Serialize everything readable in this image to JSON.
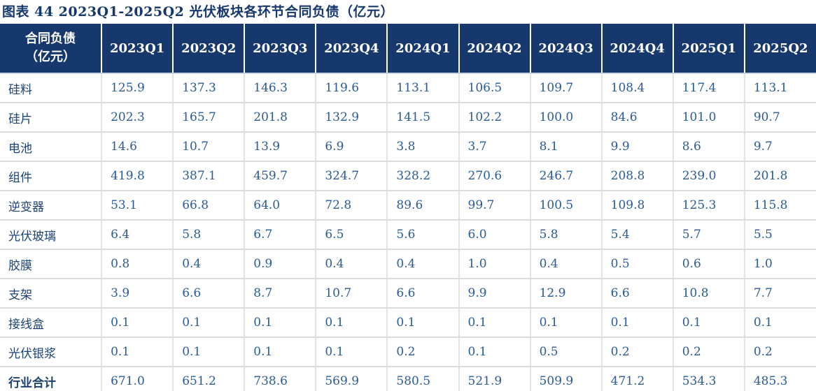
{
  "title": "图表 44  2023Q1-2025Q2 光伏板块各环节合同负债（亿元）",
  "table": {
    "header": {
      "label_line1": "合同负债",
      "label_line2": "（亿元）",
      "quarters": [
        "2023Q1",
        "2023Q2",
        "2023Q3",
        "2023Q4",
        "2024Q1",
        "2024Q2",
        "2024Q3",
        "2024Q4",
        "2025Q1",
        "2025Q2"
      ]
    },
    "rows": [
      {
        "label": "硅料",
        "total": false,
        "values": [
          "125.9",
          "137.3",
          "146.3",
          "119.6",
          "113.1",
          "106.5",
          "109.7",
          "108.4",
          "117.4",
          "113.1"
        ]
      },
      {
        "label": "硅片",
        "total": false,
        "values": [
          "202.3",
          "165.7",
          "201.8",
          "132.9",
          "141.5",
          "102.2",
          "100.0",
          "84.6",
          "101.0",
          "90.7"
        ]
      },
      {
        "label": "电池",
        "total": false,
        "values": [
          "14.6",
          "10.7",
          "13.9",
          "6.9",
          "3.8",
          "3.7",
          "8.1",
          "9.9",
          "8.6",
          "9.7"
        ]
      },
      {
        "label": "组件",
        "total": false,
        "values": [
          "419.8",
          "387.1",
          "459.7",
          "324.7",
          "328.2",
          "270.6",
          "246.7",
          "208.8",
          "239.0",
          "201.8"
        ]
      },
      {
        "label": "逆变器",
        "total": false,
        "values": [
          "53.1",
          "66.8",
          "64.0",
          "72.8",
          "89.6",
          "99.7",
          "100.5",
          "109.8",
          "125.3",
          "115.8"
        ]
      },
      {
        "label": "光伏玻璃",
        "total": false,
        "values": [
          "6.4",
          "5.8",
          "6.7",
          "6.5",
          "5.6",
          "6.0",
          "5.8",
          "5.4",
          "5.7",
          "5.5"
        ]
      },
      {
        "label": "胶膜",
        "total": false,
        "values": [
          "0.8",
          "0.4",
          "0.9",
          "0.4",
          "0.4",
          "1.0",
          "0.4",
          "0.5",
          "0.6",
          "1.0"
        ]
      },
      {
        "label": "支架",
        "total": false,
        "values": [
          "3.9",
          "6.6",
          "8.7",
          "10.7",
          "6.6",
          "9.9",
          "12.9",
          "6.6",
          "10.8",
          "7.7"
        ]
      },
      {
        "label": "接线盒",
        "total": false,
        "values": [
          "0.1",
          "0.1",
          "0.1",
          "0.1",
          "0.1",
          "0.1",
          "0.1",
          "0.1",
          "0.1",
          "0.1"
        ]
      },
      {
        "label": "光伏银浆",
        "total": false,
        "values": [
          "0.1",
          "0.1",
          "0.1",
          "0.1",
          "0.2",
          "0.1",
          "0.5",
          "0.2",
          "0.2",
          "0.2"
        ]
      },
      {
        "label": "行业合计",
        "total": true,
        "values": [
          "671.0",
          "651.2",
          "738.6",
          "569.9",
          "580.5",
          "521.9",
          "509.9",
          "471.2",
          "534.3",
          "485.3"
        ]
      }
    ]
  },
  "colors": {
    "navy": "#17386d",
    "number_text": "#2a5b94",
    "label_text": "#1c4273",
    "grid_line": "#dcdcdc"
  },
  "chart_data": {
    "type": "table",
    "title": "图表 44 2023Q1-2025Q2 光伏板块各环节合同负债（亿元）",
    "columns": [
      "合同负债（亿元）",
      "2023Q1",
      "2023Q2",
      "2023Q3",
      "2023Q4",
      "2024Q1",
      "2024Q2",
      "2024Q3",
      "2024Q4",
      "2025Q1",
      "2025Q2"
    ],
    "rows": [
      [
        "硅料",
        125.9,
        137.3,
        146.3,
        119.6,
        113.1,
        106.5,
        109.7,
        108.4,
        117.4,
        113.1
      ],
      [
        "硅片",
        202.3,
        165.7,
        201.8,
        132.9,
        141.5,
        102.2,
        100.0,
        84.6,
        101.0,
        90.7
      ],
      [
        "电池",
        14.6,
        10.7,
        13.9,
        6.9,
        3.8,
        3.7,
        8.1,
        9.9,
        8.6,
        9.7
      ],
      [
        "组件",
        419.8,
        387.1,
        459.7,
        324.7,
        328.2,
        270.6,
        246.7,
        208.8,
        239.0,
        201.8
      ],
      [
        "逆变器",
        53.1,
        66.8,
        64.0,
        72.8,
        89.6,
        99.7,
        100.5,
        109.8,
        125.3,
        115.8
      ],
      [
        "光伏玻璃",
        6.4,
        5.8,
        6.7,
        6.5,
        5.6,
        6.0,
        5.8,
        5.4,
        5.7,
        5.5
      ],
      [
        "胶膜",
        0.8,
        0.4,
        0.9,
        0.4,
        0.4,
        1.0,
        0.4,
        0.5,
        0.6,
        1.0
      ],
      [
        "支架",
        3.9,
        6.6,
        8.7,
        10.7,
        6.6,
        9.9,
        12.9,
        6.6,
        10.8,
        7.7
      ],
      [
        "接线盒",
        0.1,
        0.1,
        0.1,
        0.1,
        0.1,
        0.1,
        0.1,
        0.1,
        0.1,
        0.1
      ],
      [
        "光伏银浆",
        0.1,
        0.1,
        0.1,
        0.1,
        0.2,
        0.1,
        0.5,
        0.2,
        0.2,
        0.2
      ],
      [
        "行业合计",
        671.0,
        651.2,
        738.6,
        569.9,
        580.5,
        521.9,
        509.9,
        471.2,
        534.3,
        485.3
      ]
    ]
  }
}
